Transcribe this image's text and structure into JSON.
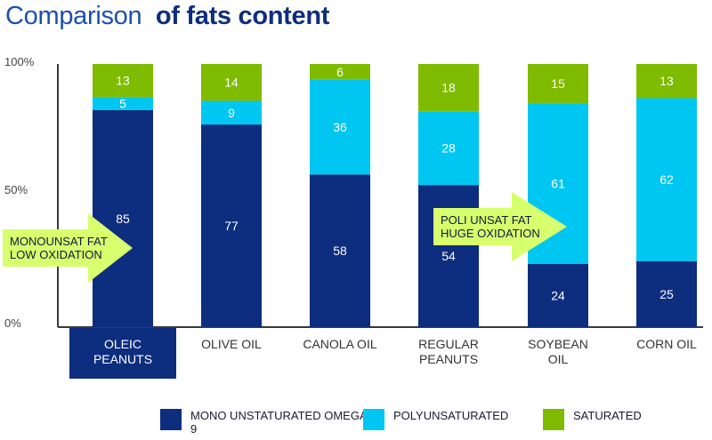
{
  "header": {
    "title_light": "Comparison",
    "title_bold": "of fats content"
  },
  "colors": {
    "mono": "#0d2d7f",
    "poly": "#00c6f2",
    "saturated": "#7fbb00",
    "title_light": "#1c4fb0",
    "title_bold": "#0d2d7f",
    "tick": "#444444",
    "axis": "#3a3a3a",
    "arrow": "#d8ff6e",
    "highlight_bg": "#0d2d7f"
  },
  "chart_data": {
    "type": "bar",
    "stacked": true,
    "categories": [
      "OLEIC PEANUTS",
      "OLIVE OIL",
      "CANOLA OIL",
      "REGULAR PEANUTS",
      "SOYBEAN OIL",
      "CORN OIL"
    ],
    "highlighted_category": "OLEIC PEANUTS",
    "series": [
      {
        "key": "mono",
        "name": "MONO UNSTATURATED OMEGA 9",
        "values": [
          85,
          77,
          58,
          54,
          24,
          25
        ]
      },
      {
        "key": "poly",
        "name": "POLYUNSATURATED",
        "values": [
          5,
          9,
          36,
          28,
          61,
          62
        ]
      },
      {
        "key": "saturated",
        "name": "SATURATED",
        "values": [
          13,
          14,
          6,
          18,
          15,
          13
        ]
      }
    ],
    "ylim": [
      0,
      100
    ],
    "yticks": [
      "0%",
      "50%",
      "100%"
    ],
    "legend_position": "bottom",
    "annotations": [
      {
        "text": "MONOUNSAT FAT LOW OXIDATION",
        "points_to": "OLEIC PEANUTS"
      },
      {
        "text": "POLI UNSAT FAT HUGE OXIDATION",
        "points_to": "SOYBEAN OIL"
      }
    ]
  }
}
